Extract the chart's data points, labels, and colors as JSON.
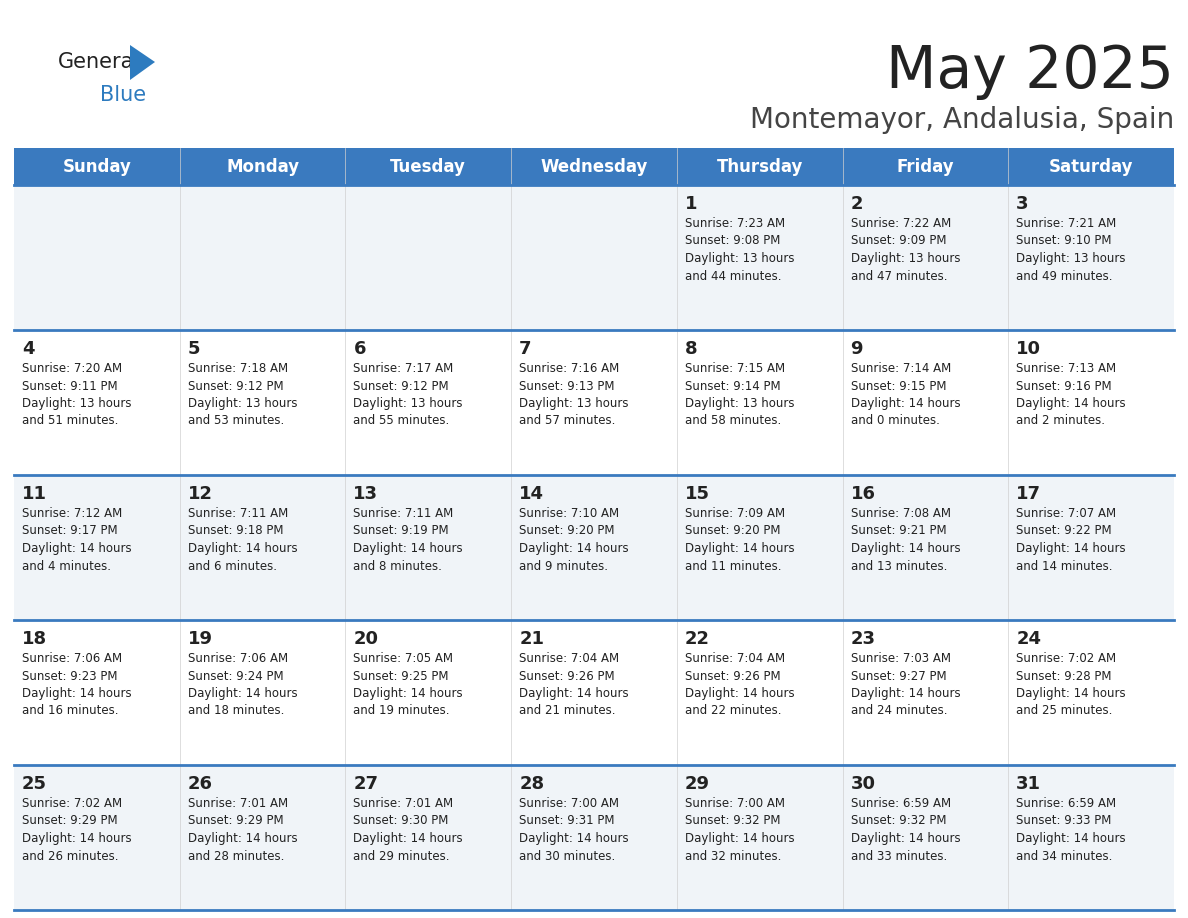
{
  "title": "May 2025",
  "subtitle": "Montemayor, Andalusia, Spain",
  "days_of_week": [
    "Sunday",
    "Monday",
    "Tuesday",
    "Wednesday",
    "Thursday",
    "Friday",
    "Saturday"
  ],
  "header_bg": "#3a7abf",
  "header_text": "#ffffff",
  "row_bg_odd": "#f0f4f8",
  "row_bg_even": "#ffffff",
  "border_color": "#3a7abf",
  "day_num_color": "#222222",
  "cell_text_color": "#222222",
  "title_color": "#222222",
  "subtitle_color": "#444444",
  "logo_general_color": "#222222",
  "logo_blue_color": "#2d7bbf",
  "weeks": [
    [
      {
        "day": "",
        "info": ""
      },
      {
        "day": "",
        "info": ""
      },
      {
        "day": "",
        "info": ""
      },
      {
        "day": "",
        "info": ""
      },
      {
        "day": "1",
        "info": "Sunrise: 7:23 AM\nSunset: 9:08 PM\nDaylight: 13 hours\nand 44 minutes."
      },
      {
        "day": "2",
        "info": "Sunrise: 7:22 AM\nSunset: 9:09 PM\nDaylight: 13 hours\nand 47 minutes."
      },
      {
        "day": "3",
        "info": "Sunrise: 7:21 AM\nSunset: 9:10 PM\nDaylight: 13 hours\nand 49 minutes."
      }
    ],
    [
      {
        "day": "4",
        "info": "Sunrise: 7:20 AM\nSunset: 9:11 PM\nDaylight: 13 hours\nand 51 minutes."
      },
      {
        "day": "5",
        "info": "Sunrise: 7:18 AM\nSunset: 9:12 PM\nDaylight: 13 hours\nand 53 minutes."
      },
      {
        "day": "6",
        "info": "Sunrise: 7:17 AM\nSunset: 9:12 PM\nDaylight: 13 hours\nand 55 minutes."
      },
      {
        "day": "7",
        "info": "Sunrise: 7:16 AM\nSunset: 9:13 PM\nDaylight: 13 hours\nand 57 minutes."
      },
      {
        "day": "8",
        "info": "Sunrise: 7:15 AM\nSunset: 9:14 PM\nDaylight: 13 hours\nand 58 minutes."
      },
      {
        "day": "9",
        "info": "Sunrise: 7:14 AM\nSunset: 9:15 PM\nDaylight: 14 hours\nand 0 minutes."
      },
      {
        "day": "10",
        "info": "Sunrise: 7:13 AM\nSunset: 9:16 PM\nDaylight: 14 hours\nand 2 minutes."
      }
    ],
    [
      {
        "day": "11",
        "info": "Sunrise: 7:12 AM\nSunset: 9:17 PM\nDaylight: 14 hours\nand 4 minutes."
      },
      {
        "day": "12",
        "info": "Sunrise: 7:11 AM\nSunset: 9:18 PM\nDaylight: 14 hours\nand 6 minutes."
      },
      {
        "day": "13",
        "info": "Sunrise: 7:11 AM\nSunset: 9:19 PM\nDaylight: 14 hours\nand 8 minutes."
      },
      {
        "day": "14",
        "info": "Sunrise: 7:10 AM\nSunset: 9:20 PM\nDaylight: 14 hours\nand 9 minutes."
      },
      {
        "day": "15",
        "info": "Sunrise: 7:09 AM\nSunset: 9:20 PM\nDaylight: 14 hours\nand 11 minutes."
      },
      {
        "day": "16",
        "info": "Sunrise: 7:08 AM\nSunset: 9:21 PM\nDaylight: 14 hours\nand 13 minutes."
      },
      {
        "day": "17",
        "info": "Sunrise: 7:07 AM\nSunset: 9:22 PM\nDaylight: 14 hours\nand 14 minutes."
      }
    ],
    [
      {
        "day": "18",
        "info": "Sunrise: 7:06 AM\nSunset: 9:23 PM\nDaylight: 14 hours\nand 16 minutes."
      },
      {
        "day": "19",
        "info": "Sunrise: 7:06 AM\nSunset: 9:24 PM\nDaylight: 14 hours\nand 18 minutes."
      },
      {
        "day": "20",
        "info": "Sunrise: 7:05 AM\nSunset: 9:25 PM\nDaylight: 14 hours\nand 19 minutes."
      },
      {
        "day": "21",
        "info": "Sunrise: 7:04 AM\nSunset: 9:26 PM\nDaylight: 14 hours\nand 21 minutes."
      },
      {
        "day": "22",
        "info": "Sunrise: 7:04 AM\nSunset: 9:26 PM\nDaylight: 14 hours\nand 22 minutes."
      },
      {
        "day": "23",
        "info": "Sunrise: 7:03 AM\nSunset: 9:27 PM\nDaylight: 14 hours\nand 24 minutes."
      },
      {
        "day": "24",
        "info": "Sunrise: 7:02 AM\nSunset: 9:28 PM\nDaylight: 14 hours\nand 25 minutes."
      }
    ],
    [
      {
        "day": "25",
        "info": "Sunrise: 7:02 AM\nSunset: 9:29 PM\nDaylight: 14 hours\nand 26 minutes."
      },
      {
        "day": "26",
        "info": "Sunrise: 7:01 AM\nSunset: 9:29 PM\nDaylight: 14 hours\nand 28 minutes."
      },
      {
        "day": "27",
        "info": "Sunrise: 7:01 AM\nSunset: 9:30 PM\nDaylight: 14 hours\nand 29 minutes."
      },
      {
        "day": "28",
        "info": "Sunrise: 7:00 AM\nSunset: 9:31 PM\nDaylight: 14 hours\nand 30 minutes."
      },
      {
        "day": "29",
        "info": "Sunrise: 7:00 AM\nSunset: 9:32 PM\nDaylight: 14 hours\nand 32 minutes."
      },
      {
        "day": "30",
        "info": "Sunrise: 6:59 AM\nSunset: 9:32 PM\nDaylight: 14 hours\nand 33 minutes."
      },
      {
        "day": "31",
        "info": "Sunrise: 6:59 AM\nSunset: 9:33 PM\nDaylight: 14 hours\nand 34 minutes."
      }
    ]
  ]
}
